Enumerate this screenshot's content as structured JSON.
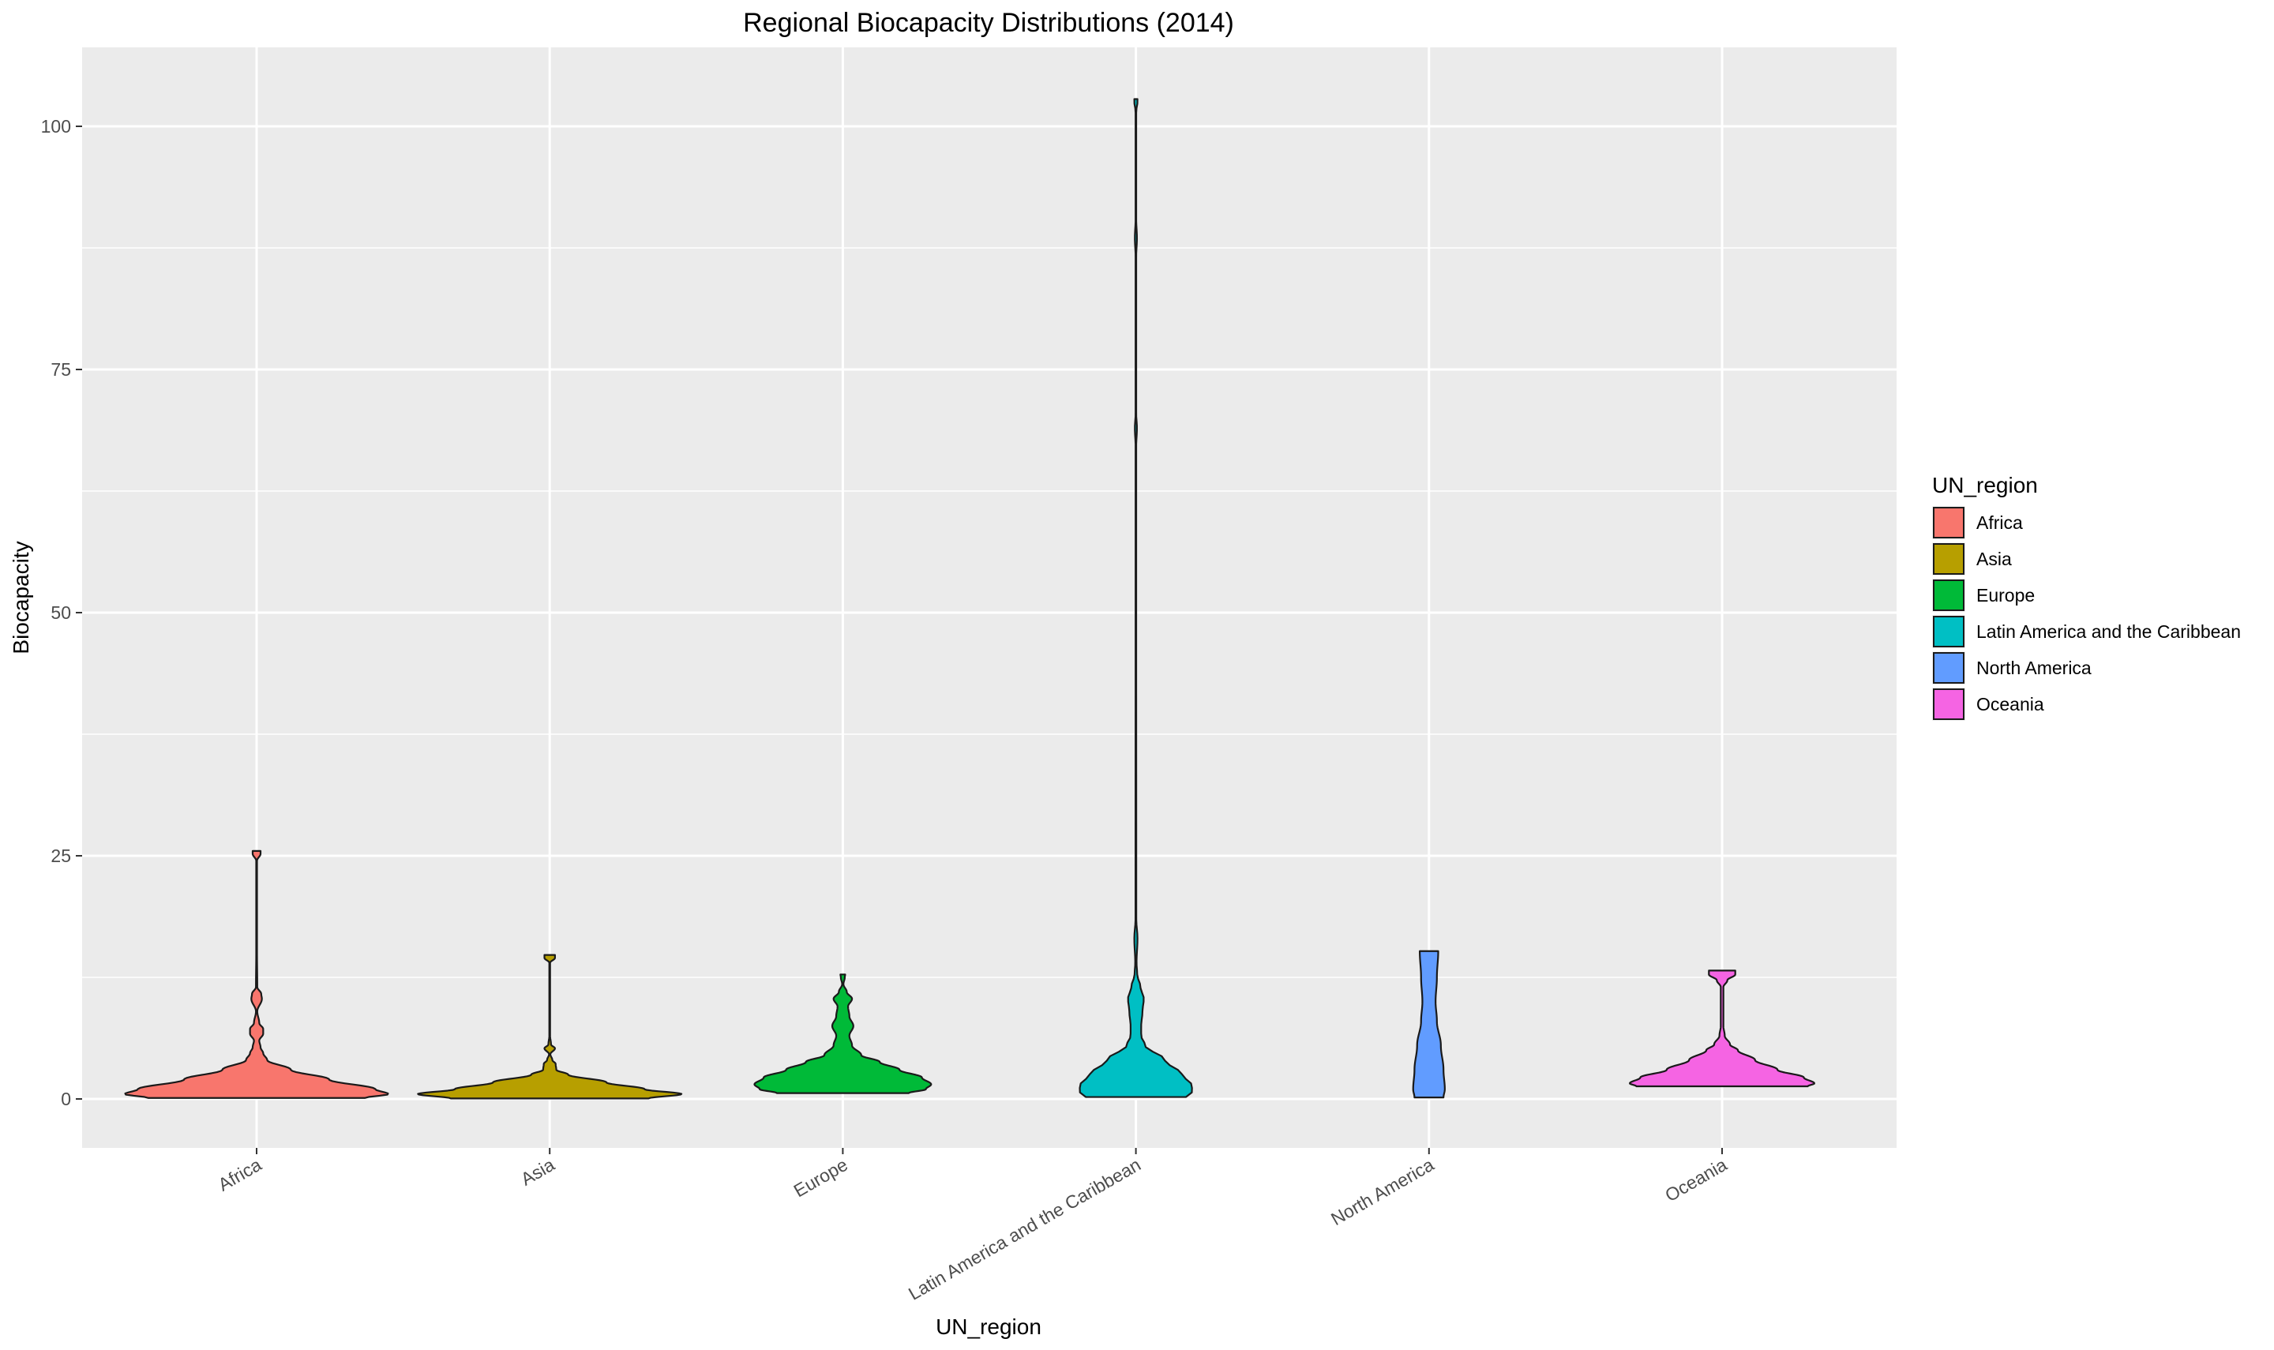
{
  "chart_data": {
    "type": "violin",
    "title": "Regional Biocapacity Distributions (2014)",
    "xlabel": "UN_region",
    "ylabel": "Biocapacity",
    "ylim": [
      -5,
      108
    ],
    "yticks": [
      0,
      25,
      50,
      75,
      100
    ],
    "grid": true,
    "legend": {
      "title": "UN_region",
      "position": "right"
    },
    "categories": [
      "Africa",
      "Asia",
      "Europe",
      "Latin America and the Caribbean",
      "North America",
      "Oceania"
    ],
    "series": [
      {
        "name": "Africa",
        "color": "#F8766D",
        "min": 0.1,
        "max": 25.5,
        "width_profile": [
          [
            0.1,
            0.82
          ],
          [
            0.5,
            1.0
          ],
          [
            1.0,
            0.9
          ],
          [
            2.0,
            0.55
          ],
          [
            3.0,
            0.26
          ],
          [
            4.0,
            0.08
          ],
          [
            4.7,
            0.05
          ],
          [
            5.3,
            0.03
          ],
          [
            6.0,
            0.02
          ],
          [
            6.7,
            0.05
          ],
          [
            7.2,
            0.05
          ],
          [
            7.8,
            0.02
          ],
          [
            9.0,
            0.005
          ],
          [
            10.3,
            0.04
          ],
          [
            10.8,
            0.035
          ],
          [
            11.5,
            0.005
          ],
          [
            15,
            0.003
          ],
          [
            24.5,
            0.003
          ],
          [
            25.2,
            0.03
          ],
          [
            25.5,
            0.03
          ]
        ]
      },
      {
        "name": "Asia",
        "color": "#B79F00",
        "min": 0.05,
        "max": 14.8,
        "width_profile": [
          [
            0.05,
            0.75
          ],
          [
            0.5,
            1.0
          ],
          [
            1.0,
            0.72
          ],
          [
            1.7,
            0.43
          ],
          [
            2.5,
            0.14
          ],
          [
            3.0,
            0.05
          ],
          [
            3.6,
            0.045
          ],
          [
            4.0,
            0.02
          ],
          [
            4.6,
            0.005
          ],
          [
            5.2,
            0.04
          ],
          [
            5.6,
            0.01
          ],
          [
            6.5,
            0.003
          ],
          [
            14.0,
            0.003
          ],
          [
            14.5,
            0.04
          ],
          [
            14.8,
            0.04
          ]
        ]
      },
      {
        "name": "Europe",
        "color": "#00BA38",
        "min": 0.6,
        "max": 12.8,
        "width_profile": [
          [
            0.6,
            0.5
          ],
          [
            1.0,
            0.63
          ],
          [
            1.5,
            0.67
          ],
          [
            2.2,
            0.6
          ],
          [
            3.0,
            0.43
          ],
          [
            3.8,
            0.28
          ],
          [
            4.5,
            0.14
          ],
          [
            5.5,
            0.07
          ],
          [
            6.5,
            0.05
          ],
          [
            7.5,
            0.08
          ],
          [
            8.5,
            0.05
          ],
          [
            9.5,
            0.04
          ],
          [
            10.3,
            0.07
          ],
          [
            11.0,
            0.03
          ],
          [
            11.8,
            0.005
          ],
          [
            12.5,
            0.015
          ],
          [
            12.8,
            0.018
          ]
        ]
      },
      {
        "name": "Latin America and the Caribbean",
        "color": "#00BFC4",
        "min": 0.2,
        "max": 102.8,
        "width_profile": [
          [
            0.2,
            0.38
          ],
          [
            0.8,
            0.43
          ],
          [
            1.5,
            0.42
          ],
          [
            2.5,
            0.35
          ],
          [
            4.0,
            0.22
          ],
          [
            5.5,
            0.07
          ],
          [
            6.5,
            0.04
          ],
          [
            7.5,
            0.04
          ],
          [
            9.0,
            0.05
          ],
          [
            10.3,
            0.06
          ],
          [
            11.5,
            0.035
          ],
          [
            12.8,
            0.01
          ],
          [
            14.0,
            0.005
          ],
          [
            16.5,
            0.012
          ],
          [
            18.5,
            0.003
          ],
          [
            67,
            0.002
          ],
          [
            69,
            0.008
          ],
          [
            70.5,
            0.002
          ],
          [
            86.5,
            0.002
          ],
          [
            88.5,
            0.008
          ],
          [
            90.5,
            0.002
          ],
          [
            101.5,
            0.002
          ],
          [
            102.5,
            0.012
          ],
          [
            102.8,
            0.012
          ]
        ]
      },
      {
        "name": "North America",
        "color": "#619CFF",
        "min": 0.15,
        "max": 15.2,
        "width_profile": [
          [
            0.15,
            0.11
          ],
          [
            1.0,
            0.12
          ],
          [
            3.0,
            0.11
          ],
          [
            5.5,
            0.09
          ],
          [
            8.0,
            0.06
          ],
          [
            10.0,
            0.05
          ],
          [
            12.5,
            0.06
          ],
          [
            15.2,
            0.07
          ]
        ]
      },
      {
        "name": "Oceania",
        "color": "#F564E3",
        "min": 1.3,
        "max": 13.2,
        "width_profile": [
          [
            1.3,
            0.65
          ],
          [
            1.6,
            0.7
          ],
          [
            2.2,
            0.62
          ],
          [
            3.0,
            0.42
          ],
          [
            4.0,
            0.25
          ],
          [
            5.0,
            0.12
          ],
          [
            5.6,
            0.06
          ],
          [
            6.5,
            0.02
          ],
          [
            7.5,
            0.01
          ],
          [
            11.5,
            0.01
          ],
          [
            12.2,
            0.04
          ],
          [
            12.8,
            0.1
          ],
          [
            13.2,
            0.1
          ]
        ]
      }
    ]
  }
}
